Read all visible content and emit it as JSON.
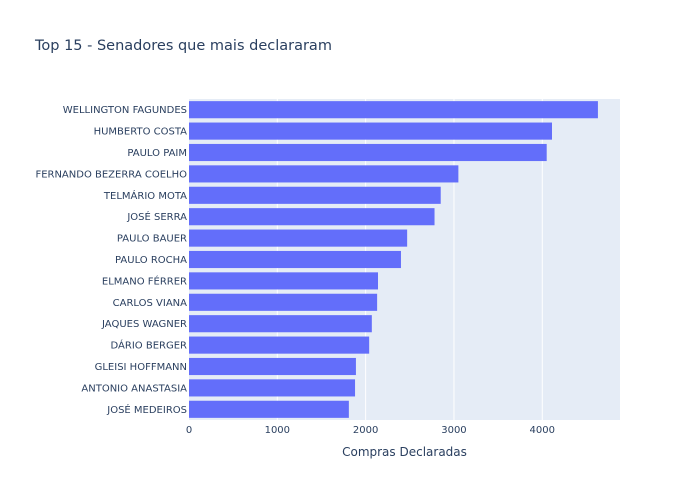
{
  "chart_data": {
    "type": "bar",
    "orientation": "horizontal",
    "title": "Top 15 - Senadores que mais declararam",
    "xlabel": "Compras Declaradas",
    "ylabel": "",
    "xlim": [
      0,
      4880
    ],
    "xticks": [
      0,
      1000,
      2000,
      3000,
      4000
    ],
    "grid": true,
    "legend": "none",
    "bar_color": "#636efa",
    "plot_bg": "#e5ecf6",
    "grid_color": "#ffffff",
    "text_color": "#2a3f5f",
    "categories": [
      "WELLINGTON FAGUNDES",
      "HUMBERTO COSTA",
      "PAULO PAIM",
      "FERNANDO BEZERRA COELHO",
      "TELMÁRIO MOTA",
      "JOSÉ SERRA",
      "PAULO BAUER",
      "PAULO ROCHA",
      "ELMANO FÉRRER",
      "CARLOS VIANA",
      "JAQUES WAGNER",
      "DÁRIO BERGER",
      "GLEISI HOFFMANN",
      "ANTONIO ANASTASIA",
      "JOSÉ MEDEIROS"
    ],
    "values": [
      4630,
      4110,
      4050,
      3050,
      2850,
      2780,
      2470,
      2400,
      2140,
      2130,
      2070,
      2040,
      1890,
      1880,
      1810
    ]
  }
}
